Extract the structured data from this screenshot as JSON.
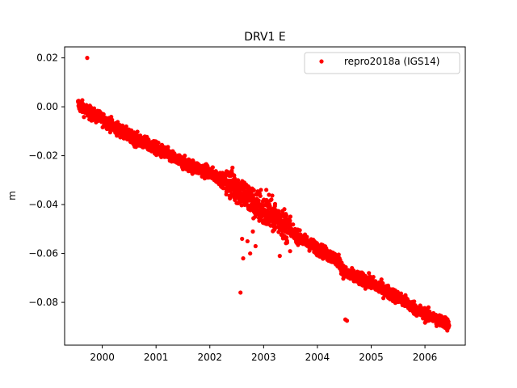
{
  "chart_data": {
    "type": "scatter",
    "title": "DRV1 E",
    "xlabel": "",
    "ylabel": "m",
    "xlim": [
      1999.3,
      2006.75
    ],
    "ylim": [
      -0.0975,
      0.0245
    ],
    "xticks": [
      2000,
      2001,
      2002,
      2003,
      2004,
      2005,
      2006
    ],
    "xtick_labels": [
      "2000",
      "2001",
      "2002",
      "2003",
      "2004",
      "2005",
      "2006"
    ],
    "yticks": [
      0.02,
      0.0,
      -0.02,
      -0.04,
      -0.06,
      -0.08
    ],
    "ytick_labels": [
      "0.02",
      "0.00",
      "−0.02",
      "−0.04",
      "−0.06",
      "−0.08"
    ],
    "grid": false,
    "legend_position": "top-right",
    "series": [
      {
        "name": "repro2018a (IGS14)",
        "color": "#ff0000",
        "marker": "circle",
        "trend": [
          [
            1999.55,
            0.001
          ],
          [
            1999.8,
            -0.003
          ],
          [
            2000.0,
            -0.005
          ],
          [
            2000.5,
            -0.012
          ],
          [
            2001.0,
            -0.017
          ],
          [
            2001.5,
            -0.023
          ],
          [
            2002.0,
            -0.027
          ],
          [
            2002.5,
            -0.033
          ],
          [
            2003.0,
            -0.043
          ],
          [
            2003.3,
            -0.046
          ],
          [
            2003.55,
            -0.052
          ],
          [
            2004.0,
            -0.058
          ],
          [
            2004.4,
            -0.063
          ],
          [
            2004.5,
            -0.068
          ],
          [
            2005.0,
            -0.072
          ],
          [
            2005.5,
            -0.078
          ],
          [
            2006.0,
            -0.085
          ],
          [
            2006.45,
            -0.089
          ]
        ],
        "outliers": [
          [
            1999.72,
            0.02
          ],
          [
            2002.57,
            -0.076
          ],
          [
            2004.52,
            -0.087
          ],
          [
            2004.55,
            -0.0875
          ],
          [
            2002.62,
            -0.062
          ],
          [
            2002.75,
            -0.06
          ],
          [
            2002.85,
            -0.057
          ],
          [
            2003.3,
            -0.061
          ],
          [
            2002.6,
            -0.054
          ],
          [
            2002.95,
            -0.034
          ],
          [
            2003.05,
            -0.034
          ],
          [
            2002.45,
            -0.028
          ],
          [
            2003.4,
            -0.051
          ],
          [
            2002.8,
            -0.051
          ],
          [
            2002.7,
            -0.055
          ],
          [
            2003.1,
            -0.036
          ]
        ]
      }
    ]
  }
}
